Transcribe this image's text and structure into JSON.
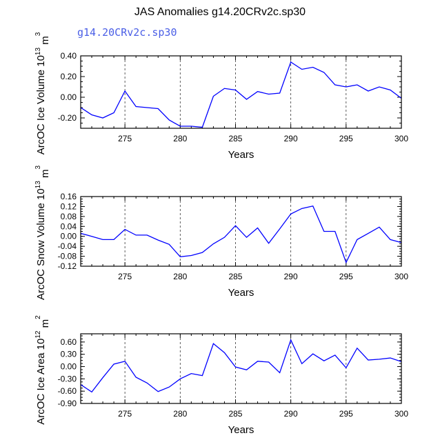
{
  "title": "JAS Anomalies g14.20CRv2c.sp30",
  "case_label": "g14.20CRv2c.sp30",
  "line_color": "#0000ff",
  "label_color": "#4a5ee6",
  "chart_data": [
    {
      "type": "line",
      "ylabel_main": "ArcOC Ice Volume 10",
      "ylabel_exp": "13",
      "ylabel_unit": " m",
      "ylabel_unit_exp": "3",
      "xlabel": "Years",
      "xlim": [
        271,
        300
      ],
      "ylim": [
        -0.3,
        0.4
      ],
      "yticks": [
        -0.2,
        0.0,
        0.2,
        0.4
      ],
      "ytick_labels": [
        "-0.20",
        "0.00",
        "0.20",
        "0.40"
      ],
      "xticks": [
        275,
        280,
        285,
        290,
        295,
        300
      ],
      "xtick_labels": [
        "275",
        "280",
        "285",
        "290",
        "295",
        "300"
      ],
      "x": [
        271,
        272,
        273,
        274,
        275,
        276,
        277,
        278,
        279,
        280,
        281,
        282,
        283,
        284,
        285,
        286,
        287,
        288,
        289,
        290,
        291,
        292,
        293,
        294,
        295,
        296,
        297,
        298,
        299,
        300
      ],
      "values": [
        -0.1,
        -0.17,
        -0.2,
        -0.15,
        0.06,
        -0.09,
        -0.1,
        -0.11,
        -0.22,
        -0.28,
        -0.28,
        -0.29,
        0.01,
        0.085,
        0.07,
        -0.02,
        0.055,
        0.03,
        0.04,
        0.34,
        0.27,
        0.29,
        0.24,
        0.12,
        0.1,
        0.12,
        0.06,
        0.1,
        0.07,
        -0.01
      ]
    },
    {
      "type": "line",
      "ylabel_main": "ArcOC Snow Volume 10",
      "ylabel_exp": "13",
      "ylabel_unit": " m",
      "ylabel_unit_exp": "3",
      "xlabel": "Years",
      "xlim": [
        271,
        300
      ],
      "ylim": [
        -0.12,
        0.16
      ],
      "yticks": [
        -0.12,
        -0.08,
        -0.04,
        0.0,
        0.04,
        0.08,
        0.12,
        0.16
      ],
      "ytick_labels": [
        "-0.12",
        "-0.08",
        "-0.04",
        "0.00",
        "0.04",
        "0.08",
        "0.12",
        "0.16"
      ],
      "xticks": [
        275,
        280,
        285,
        290,
        295,
        300
      ],
      "xtick_labels": [
        "275",
        "280",
        "285",
        "290",
        "295",
        "300"
      ],
      "x": [
        271,
        272,
        273,
        274,
        275,
        276,
        277,
        278,
        279,
        280,
        281,
        282,
        283,
        284,
        285,
        286,
        287,
        288,
        289,
        290,
        291,
        292,
        293,
        294,
        295,
        296,
        297,
        298,
        299,
        300
      ],
      "values": [
        0.012,
        0.0,
        -0.013,
        -0.013,
        0.028,
        0.005,
        0.005,
        -0.015,
        -0.032,
        -0.082,
        -0.077,
        -0.065,
        -0.03,
        -0.004,
        0.043,
        -0.004,
        0.034,
        -0.028,
        0.03,
        0.09,
        0.112,
        0.122,
        0.02,
        0.02,
        -0.105,
        -0.013,
        0.012,
        0.037,
        -0.013,
        -0.025
      ]
    },
    {
      "type": "line",
      "ylabel_main": "ArcOC Ice Area 10",
      "ylabel_exp": "12",
      "ylabel_unit": " m",
      "ylabel_unit_exp": "2",
      "xlabel": "Years",
      "xlim": [
        271,
        300
      ],
      "ylim": [
        -0.9,
        0.8
      ],
      "yticks": [
        -0.9,
        -0.6,
        -0.3,
        0.0,
        0.3,
        0.6
      ],
      "ytick_labels": [
        "-0.90",
        "-0.60",
        "-0.30",
        "0.00",
        "0.30",
        "0.60"
      ],
      "xticks": [
        275,
        280,
        285,
        290,
        295,
        300
      ],
      "xtick_labels": [
        "275",
        "280",
        "285",
        "290",
        "295",
        "300"
      ],
      "x": [
        271,
        272,
        273,
        274,
        275,
        276,
        277,
        278,
        279,
        280,
        281,
        282,
        283,
        284,
        285,
        286,
        287,
        288,
        289,
        290,
        291,
        292,
        293,
        294,
        295,
        296,
        297,
        298,
        299,
        300
      ],
      "values": [
        -0.44,
        -0.62,
        -0.27,
        0.06,
        0.13,
        -0.26,
        -0.4,
        -0.61,
        -0.5,
        -0.3,
        -0.17,
        -0.22,
        0.56,
        0.34,
        -0.01,
        -0.08,
        0.13,
        0.11,
        -0.15,
        0.65,
        0.07,
        0.31,
        0.14,
        0.28,
        -0.03,
        0.45,
        0.16,
        0.18,
        0.21,
        0.12
      ]
    }
  ]
}
